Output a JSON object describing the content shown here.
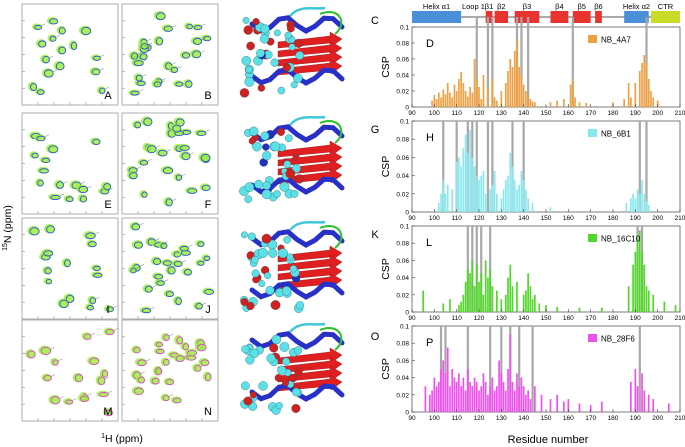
{
  "figure": {
    "y_axis_label": "N (ppm)",
    "y_axis_superscript": "15",
    "x_axis_label": "H (ppm)",
    "x_axis_superscript": "1"
  },
  "spectra_panels": [
    {
      "letter": "A"
    },
    {
      "letter": "B"
    },
    {
      "letter": "E"
    },
    {
      "letter": "F"
    },
    {
      "letter": "I"
    },
    {
      "letter": "J"
    },
    {
      "letter": "M"
    },
    {
      "letter": "N"
    }
  ],
  "structure_panels": [
    {
      "letter": "C"
    },
    {
      "letter": "G"
    },
    {
      "letter": "K"
    },
    {
      "letter": "O"
    }
  ],
  "topology": [
    {
      "label": "Helix α1",
      "color": "#4a90d9"
    },
    {
      "label": "Loop 1",
      "color": "#999999"
    },
    {
      "label": "β1",
      "color": "#e8332e"
    },
    {
      "label": "β2",
      "color": "#e8332e"
    },
    {
      "label": "β3",
      "color": "#e8332e"
    },
    {
      "label": "β4",
      "color": "#e8332e"
    },
    {
      "label": "β5",
      "color": "#e8332e"
    },
    {
      "label": "β6",
      "color": "#e8332e"
    },
    {
      "label": "Helix α2",
      "color": "#4a90d9"
    },
    {
      "label": "CTR",
      "color": "#c8dc28"
    }
  ],
  "chart_data": [
    {
      "type": "bar",
      "panel": "D",
      "legend": "NB_4A7",
      "color": "#f0a040",
      "ylabel": "CSP",
      "xlim": [
        90,
        210
      ],
      "ylim": [
        0,
        0.1
      ],
      "xticks": [
        90,
        100,
        110,
        120,
        130,
        140,
        150,
        160,
        170,
        180,
        190,
        200,
        210
      ],
      "yticks": [
        0,
        0.02,
        0.04,
        0.06,
        0.08,
        0.1
      ],
      "highlight_residues": [
        119,
        124,
        126,
        137,
        139,
        142,
        162,
        195
      ],
      "x": [
        99,
        100,
        101,
        102,
        103,
        104,
        105,
        106,
        107,
        108,
        109,
        110,
        111,
        112,
        113,
        114,
        115,
        116,
        117,
        118,
        119,
        120,
        121,
        122,
        124,
        126,
        127,
        128,
        130,
        132,
        133,
        134,
        135,
        136,
        137,
        138,
        139,
        140,
        141,
        142,
        143,
        144,
        145,
        152,
        155,
        158,
        161,
        162,
        163,
        165,
        168,
        180,
        185,
        187,
        188,
        190,
        192,
        193,
        194,
        195,
        196,
        197,
        198,
        200
      ],
      "values": [
        0.008,
        0.015,
        0.01,
        0.018,
        0.012,
        0.022,
        0.016,
        0.03,
        0.018,
        0.012,
        0.028,
        0.02,
        0.035,
        0.044,
        0.03,
        0.02,
        0.013,
        0.025,
        0.018,
        0.06,
        0.035,
        0.025,
        0.01,
        0.04,
        0.025,
        0.035,
        0.012,
        0.008,
        0.02,
        0.03,
        0.045,
        0.06,
        0.05,
        0.07,
        0.085,
        0.05,
        0.04,
        0.028,
        0.02,
        0.015,
        0.01,
        0.007,
        0.006,
        0.006,
        0.008,
        0.01,
        0.028,
        0.035,
        0.012,
        0.006,
        0.005,
        0.006,
        0.01,
        0.03,
        0.012,
        0.03,
        0.045,
        0.055,
        0.065,
        0.055,
        0.035,
        0.02,
        0.012,
        0.008
      ]
    },
    {
      "type": "bar",
      "panel": "H",
      "legend": "NB_6B1",
      "color": "#88e8f0",
      "ylabel": "CSP",
      "xlim": [
        90,
        210
      ],
      "ylim": [
        0,
        0.1
      ],
      "xticks": [
        90,
        100,
        110,
        120,
        130,
        140,
        150,
        160,
        170,
        180,
        190,
        200,
        210
      ],
      "yticks": [
        0,
        0.02,
        0.04,
        0.06,
        0.08,
        0.1
      ],
      "highlight_residues": [
        104,
        110,
        115,
        117,
        119,
        124,
        126,
        135,
        140,
        192,
        195
      ],
      "x": [
        102,
        103,
        104,
        105,
        106,
        108,
        110,
        111,
        112,
        113,
        114,
        115,
        116,
        117,
        118,
        119,
        120,
        121,
        122,
        123,
        125,
        126,
        127,
        128,
        130,
        131,
        132,
        133,
        134,
        135,
        136,
        137,
        138,
        139,
        140,
        141,
        142,
        144,
        152,
        186,
        188,
        189,
        190,
        191,
        192,
        193,
        194,
        195,
        196
      ],
      "values": [
        0.01,
        0.02,
        0.035,
        0.02,
        0.03,
        0.025,
        0.055,
        0.06,
        0.05,
        0.07,
        0.085,
        0.065,
        0.09,
        0.06,
        0.05,
        0.04,
        0.035,
        0.04,
        0.045,
        0.02,
        0.025,
        0.03,
        0.045,
        0.02,
        0.015,
        0.025,
        0.035,
        0.04,
        0.065,
        0.05,
        0.035,
        0.025,
        0.03,
        0.045,
        0.035,
        0.025,
        0.015,
        0.01,
        0.005,
        0.01,
        0.015,
        0.02,
        0.015,
        0.025,
        0.02,
        0.035,
        0.02,
        0.012,
        0.008
      ]
    },
    {
      "type": "bar",
      "panel": "L",
      "legend": "NB_16C10",
      "color": "#50d828",
      "ylabel": "CSP",
      "xlim": [
        90,
        210
      ],
      "ylim": [
        0,
        0.1
      ],
      "xticks": [
        90,
        100,
        110,
        120,
        130,
        140,
        150,
        160,
        170,
        180,
        190,
        200,
        210
      ],
      "yticks": [
        0,
        0.02,
        0.04,
        0.06,
        0.08,
        0.1
      ],
      "highlight_residues": [
        115,
        117,
        119,
        121,
        125,
        191,
        193
      ],
      "x": [
        95,
        104,
        107,
        111,
        112,
        113,
        114,
        115,
        116,
        117,
        118,
        119,
        120,
        121,
        122,
        123,
        124,
        125,
        126,
        128,
        130,
        132,
        133,
        134,
        135,
        137,
        140,
        141,
        142,
        143,
        144,
        145,
        147,
        150,
        155,
        165,
        175,
        187,
        189,
        190,
        191,
        192,
        193,
        194,
        195,
        196,
        198,
        203,
        208
      ],
      "values": [
        0.025,
        0.01,
        0.015,
        0.008,
        0.012,
        0.02,
        0.035,
        0.05,
        0.045,
        0.06,
        0.03,
        0.055,
        0.035,
        0.045,
        0.02,
        0.06,
        0.04,
        0.05,
        0.03,
        0.025,
        0.015,
        0.02,
        0.04,
        0.055,
        0.03,
        0.035,
        0.02,
        0.025,
        0.045,
        0.03,
        0.015,
        0.02,
        0.01,
        0.008,
        0.006,
        0.005,
        0.005,
        0.03,
        0.055,
        0.07,
        0.085,
        0.095,
        0.07,
        0.055,
        0.03,
        0.025,
        0.02,
        0.012,
        0.008
      ]
    },
    {
      "type": "bar",
      "panel": "P",
      "legend": "NB_28F6",
      "color": "#f050f0",
      "ylabel": "CSP",
      "xlim": [
        90,
        210
      ],
      "ylim": [
        0,
        0.1
      ],
      "xticks": [
        90,
        100,
        110,
        120,
        130,
        140,
        150,
        160,
        170,
        180,
        190,
        200,
        210
      ],
      "yticks": [
        0,
        0.02,
        0.04,
        0.06,
        0.08,
        0.1
      ],
      "highlight_residues": [
        103,
        105,
        115,
        125,
        130,
        134,
        138,
        144,
        192
      ],
      "x": [
        96,
        98,
        99,
        100,
        101,
        102,
        103,
        104,
        105,
        106,
        107,
        108,
        109,
        110,
        111,
        112,
        113,
        114,
        115,
        116,
        117,
        118,
        119,
        120,
        121,
        122,
        123,
        124,
        125,
        126,
        127,
        128,
        129,
        130,
        131,
        132,
        133,
        134,
        135,
        136,
        137,
        138,
        139,
        140,
        141,
        142,
        143,
        145,
        148,
        152,
        155,
        158,
        160,
        165,
        170,
        175,
        188,
        190,
        191,
        193,
        194,
        196,
        198,
        205
      ],
      "values": [
        0.03,
        0.02,
        0.025,
        0.04,
        0.03,
        0.035,
        0.05,
        0.06,
        0.045,
        0.075,
        0.03,
        0.05,
        0.04,
        0.035,
        0.045,
        0.03,
        0.04,
        0.025,
        0.05,
        0.035,
        0.03,
        0.04,
        0.035,
        0.025,
        0.03,
        0.045,
        0.035,
        0.02,
        0.03,
        0.04,
        0.025,
        0.03,
        0.06,
        0.045,
        0.035,
        0.025,
        0.05,
        0.09,
        0.035,
        0.025,
        0.045,
        0.03,
        0.04,
        0.03,
        0.02,
        0.025,
        0.015,
        0.03,
        0.02,
        0.015,
        0.02,
        0.012,
        0.015,
        0.01,
        0.008,
        0.012,
        0.035,
        0.05,
        0.03,
        0.045,
        0.025,
        0.02,
        0.015,
        0.01
      ]
    }
  ],
  "x_axis_title": "Residue number"
}
